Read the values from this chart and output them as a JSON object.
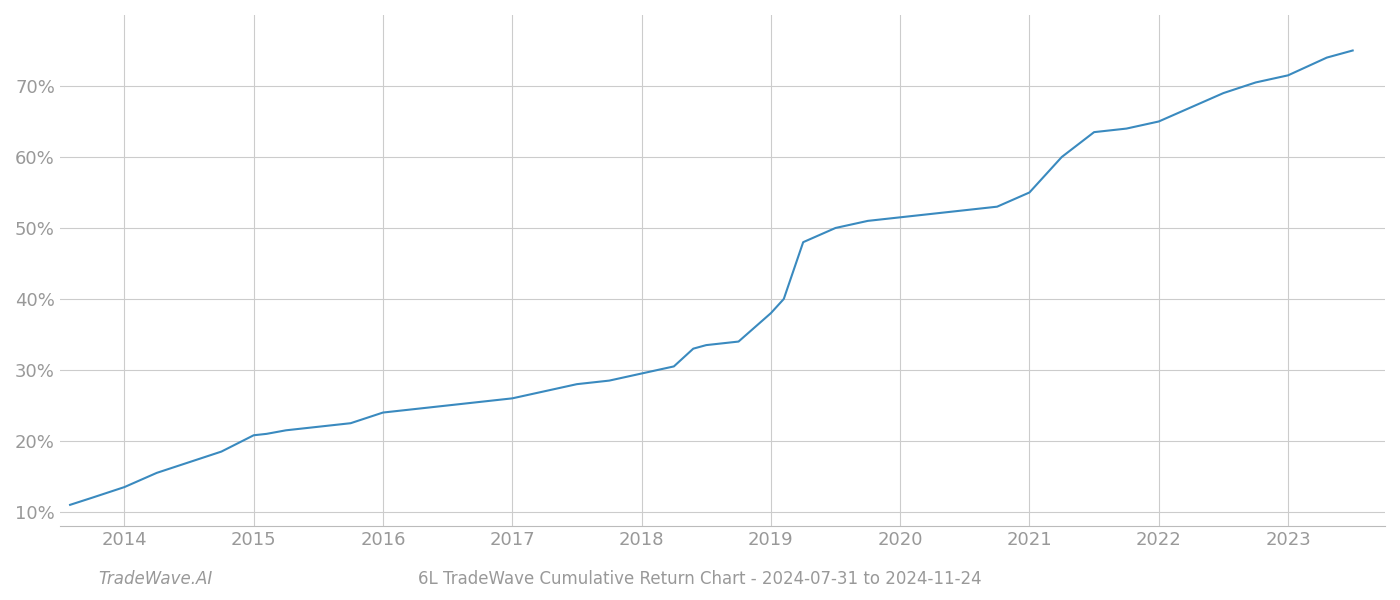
{
  "title": "6L TradeWave Cumulative Return Chart - 2024-07-31 to 2024-11-24",
  "watermark": "TradeWave.AI",
  "line_color": "#3a8abf",
  "background_color": "#ffffff",
  "grid_color": "#cccccc",
  "x_years": [
    2014,
    2015,
    2016,
    2017,
    2018,
    2019,
    2020,
    2021,
    2022,
    2023
  ],
  "x_data": [
    2013.58,
    2013.75,
    2014.0,
    2014.25,
    2014.5,
    2014.75,
    2015.0,
    2015.1,
    2015.25,
    2015.5,
    2015.75,
    2016.0,
    2016.25,
    2016.5,
    2016.75,
    2017.0,
    2017.25,
    2017.5,
    2017.75,
    2018.0,
    2018.25,
    2018.4,
    2018.5,
    2018.65,
    2018.75,
    2019.0,
    2019.1,
    2019.25,
    2019.5,
    2019.75,
    2020.0,
    2020.25,
    2020.5,
    2020.75,
    2021.0,
    2021.25,
    2021.5,
    2021.75,
    2022.0,
    2022.25,
    2022.5,
    2022.75,
    2023.0,
    2023.3,
    2023.5
  ],
  "y_data": [
    11.0,
    12.0,
    13.5,
    15.5,
    17.0,
    18.5,
    20.8,
    21.0,
    21.5,
    22.0,
    22.5,
    24.0,
    24.5,
    25.0,
    25.5,
    26.0,
    27.0,
    28.0,
    28.5,
    29.5,
    30.5,
    33.0,
    33.5,
    33.8,
    34.0,
    38.0,
    40.0,
    48.0,
    50.0,
    51.0,
    51.5,
    52.0,
    52.5,
    53.0,
    55.0,
    60.0,
    63.5,
    64.0,
    65.0,
    67.0,
    69.0,
    70.5,
    71.5,
    74.0,
    75.0
  ],
  "ylim": [
    8,
    80
  ],
  "yticks": [
    10,
    20,
    30,
    40,
    50,
    60,
    70
  ],
  "xlim": [
    2013.5,
    2023.75
  ],
  "tick_color": "#999999",
  "tick_fontsize": 13,
  "title_fontsize": 12,
  "watermark_fontsize": 12
}
